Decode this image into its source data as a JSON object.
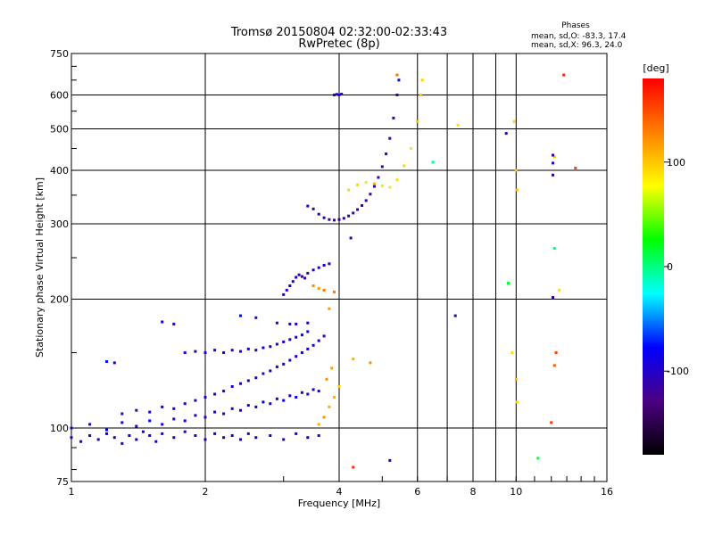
{
  "chart_data": {
    "type": "scatter",
    "title": "Tromsø 20150804 02:32:00-02:33:43",
    "subtitle": "RwPretec (8p)",
    "xlabel": "Frequency [MHz]",
    "ylabel": "Stationary phase Virtual Height [km]",
    "x_scale": "log",
    "y_scale": "log",
    "xlim": [
      1,
      16
    ],
    "ylim": [
      75,
      750
    ],
    "x_ticks": [
      1,
      2,
      4,
      6,
      8,
      10,
      16
    ],
    "x_minor_gridlines": [
      7,
      9
    ],
    "y_ticks": [
      75,
      100,
      200,
      300,
      400,
      500,
      600,
      750
    ],
    "grid": true,
    "stats": {
      "heading": "Phases",
      "line_o": "mean, sd,O: -83.3, 17.4",
      "line_x": "mean, sd,X:  96.3, 24.0"
    },
    "colorbar": {
      "label": "[deg]",
      "range": [
        -180,
        180
      ],
      "ticks": [
        100,
        0,
        -100
      ],
      "tick_labels": [
        "100",
        "0",
        "-100"
      ],
      "colormap": [
        "#000000",
        "#4b0082",
        "#0000ff",
        "#00ffff",
        "#00ff00",
        "#ffff00",
        "#ff8000",
        "#ff0000"
      ]
    },
    "traces": [
      {
        "phase": -95,
        "points": [
          [
            1.0,
            95
          ],
          [
            1.05,
            93
          ],
          [
            1.1,
            96
          ],
          [
            1.15,
            94
          ],
          [
            1.2,
            97
          ],
          [
            1.25,
            95
          ],
          [
            1.3,
            92
          ],
          [
            1.35,
            96
          ],
          [
            1.4,
            94
          ],
          [
            1.45,
            98
          ],
          [
            1.5,
            96
          ],
          [
            1.55,
            93
          ],
          [
            1.6,
            97
          ],
          [
            1.7,
            95
          ],
          [
            1.8,
            98
          ],
          [
            1.9,
            96
          ],
          [
            2.0,
            94
          ],
          [
            2.1,
            97
          ],
          [
            2.2,
            95
          ],
          [
            2.3,
            96
          ],
          [
            2.4,
            94
          ],
          [
            2.5,
            97
          ],
          [
            2.6,
            95
          ],
          [
            2.8,
            96
          ],
          [
            3.0,
            94
          ],
          [
            3.2,
            97
          ],
          [
            3.4,
            95
          ],
          [
            3.6,
            96
          ]
        ]
      },
      {
        "phase": -90,
        "points": [
          [
            1.0,
            100
          ],
          [
            1.1,
            102
          ],
          [
            1.2,
            99
          ],
          [
            1.3,
            103
          ],
          [
            1.4,
            101
          ],
          [
            1.5,
            104
          ],
          [
            1.6,
            102
          ],
          [
            1.7,
            105
          ],
          [
            1.8,
            104
          ],
          [
            1.9,
            107
          ],
          [
            2.0,
            106
          ],
          [
            2.1,
            109
          ],
          [
            2.2,
            108
          ],
          [
            2.3,
            111
          ],
          [
            2.4,
            110
          ],
          [
            2.5,
            113
          ],
          [
            2.6,
            112
          ],
          [
            2.7,
            115
          ],
          [
            2.8,
            114
          ],
          [
            2.9,
            117
          ],
          [
            3.0,
            116
          ],
          [
            3.1,
            119
          ],
          [
            3.2,
            118
          ],
          [
            3.3,
            121
          ],
          [
            3.4,
            120
          ],
          [
            3.5,
            123
          ],
          [
            3.6,
            122
          ]
        ]
      },
      {
        "phase": -100,
        "points": [
          [
            1.3,
            108
          ],
          [
            1.4,
            110
          ],
          [
            1.5,
            109
          ],
          [
            1.6,
            112
          ],
          [
            1.7,
            111
          ],
          [
            1.8,
            114
          ],
          [
            1.9,
            116
          ],
          [
            2.0,
            118
          ],
          [
            2.1,
            120
          ],
          [
            2.2,
            122
          ],
          [
            2.3,
            125
          ],
          [
            2.4,
            127
          ],
          [
            2.5,
            129
          ],
          [
            2.6,
            131
          ],
          [
            2.7,
            134
          ],
          [
            2.8,
            136
          ],
          [
            2.9,
            139
          ],
          [
            3.0,
            141
          ],
          [
            3.1,
            144
          ],
          [
            3.2,
            147
          ],
          [
            3.3,
            150
          ],
          [
            3.4,
            153
          ],
          [
            3.5,
            156
          ],
          [
            3.6,
            160
          ],
          [
            3.7,
            164
          ]
        ]
      },
      {
        "phase": -95,
        "points": [
          [
            1.8,
            150
          ],
          [
            1.9,
            151
          ],
          [
            2.0,
            150
          ],
          [
            2.1,
            152
          ],
          [
            2.2,
            150
          ],
          [
            2.3,
            152
          ],
          [
            2.4,
            151
          ],
          [
            2.5,
            153
          ],
          [
            2.6,
            152
          ],
          [
            2.7,
            154
          ],
          [
            2.8,
            155
          ],
          [
            2.9,
            157
          ],
          [
            3.0,
            159
          ],
          [
            3.1,
            161
          ],
          [
            3.2,
            163
          ],
          [
            3.3,
            165
          ],
          [
            3.4,
            168
          ]
        ]
      },
      {
        "phase": -85,
        "points": [
          [
            1.2,
            143
          ],
          [
            1.25,
            142
          ],
          [
            1.6,
            177
          ],
          [
            1.7,
            175
          ],
          [
            2.4,
            183
          ],
          [
            2.6,
            181
          ],
          [
            2.9,
            176
          ],
          [
            3.1,
            175
          ],
          [
            3.2,
            175
          ],
          [
            3.4,
            176
          ]
        ]
      },
      {
        "phase": -100,
        "points": [
          [
            3.0,
            205
          ],
          [
            3.05,
            210
          ],
          [
            3.1,
            215
          ],
          [
            3.15,
            220
          ],
          [
            3.2,
            225
          ],
          [
            3.25,
            228
          ],
          [
            3.3,
            226
          ],
          [
            3.35,
            224
          ],
          [
            3.4,
            230
          ],
          [
            3.5,
            234
          ],
          [
            3.6,
            237
          ],
          [
            3.7,
            240
          ],
          [
            3.8,
            242
          ]
        ]
      },
      {
        "phase": -105,
        "points": [
          [
            3.4,
            330
          ],
          [
            3.5,
            325
          ],
          [
            3.6,
            316
          ],
          [
            3.7,
            310
          ],
          [
            3.8,
            307
          ],
          [
            3.9,
            306
          ],
          [
            4.0,
            307
          ],
          [
            4.1,
            309
          ],
          [
            4.2,
            313
          ],
          [
            4.3,
            318
          ],
          [
            4.4,
            324
          ],
          [
            4.5,
            331
          ],
          [
            4.6,
            340
          ],
          [
            4.7,
            352
          ],
          [
            4.8,
            367
          ],
          [
            4.9,
            385
          ],
          [
            5.0,
            408
          ],
          [
            5.1,
            437
          ],
          [
            5.2,
            475
          ],
          [
            5.3,
            530
          ],
          [
            5.4,
            600
          ],
          [
            5.45,
            650
          ]
        ]
      },
      {
        "phase": -110,
        "points": [
          [
            3.9,
            600
          ],
          [
            3.95,
            602
          ],
          [
            4.0,
            600
          ],
          [
            4.05,
            603
          ]
        ]
      },
      {
        "phase": 100,
        "points": [
          [
            4.2,
            360
          ],
          [
            4.4,
            370
          ],
          [
            4.6,
            375
          ],
          [
            4.8,
            372
          ],
          [
            5.0,
            368
          ],
          [
            5.2,
            365
          ],
          [
            5.4,
            380
          ],
          [
            5.6,
            410
          ],
          [
            5.8,
            450
          ],
          [
            6.0,
            520
          ],
          [
            6.1,
            600
          ],
          [
            6.15,
            650
          ]
        ]
      },
      {
        "phase": 110,
        "points": [
          [
            3.6,
            102
          ],
          [
            3.7,
            106
          ],
          [
            3.8,
            112
          ],
          [
            3.9,
            118
          ],
          [
            4.0,
            125
          ],
          [
            3.75,
            130
          ],
          [
            3.85,
            138
          ],
          [
            4.3,
            145
          ],
          [
            4.7,
            142
          ]
        ]
      },
      {
        "phase": 120,
        "points": [
          [
            3.5,
            215
          ],
          [
            3.6,
            212
          ],
          [
            3.7,
            210
          ],
          [
            3.9,
            208
          ],
          [
            3.8,
            190
          ]
        ]
      },
      {
        "phase": 90,
        "points": [
          [
            7.4,
            510
          ],
          [
            9.9,
            520
          ],
          [
            10.0,
            400
          ],
          [
            10.05,
            360
          ],
          [
            9.8,
            150
          ],
          [
            10.0,
            130
          ],
          [
            10.05,
            115
          ],
          [
            12.2,
            430
          ],
          [
            12.5,
            210
          ]
        ]
      },
      {
        "phase": 150,
        "points": [
          [
            5.4,
            668
          ],
          [
            12.8,
            668
          ],
          [
            13.6,
            405
          ],
          [
            12.3,
            150
          ],
          [
            12.2,
            140
          ],
          [
            12.0,
            103
          ],
          [
            4.3,
            81
          ]
        ]
      },
      {
        "phase": -110,
        "points": [
          [
            9.5,
            488
          ],
          [
            12.1,
            434
          ],
          [
            12.1,
            416
          ],
          [
            12.1,
            390
          ],
          [
            12.1,
            202
          ],
          [
            7.3,
            183
          ],
          [
            4.25,
            278
          ],
          [
            5.2,
            84
          ]
        ]
      },
      {
        "phase": 10,
        "points": [
          [
            9.6,
            218
          ],
          [
            12.2,
            263
          ],
          [
            11.2,
            85
          ],
          [
            6.5,
            418
          ]
        ]
      }
    ]
  }
}
